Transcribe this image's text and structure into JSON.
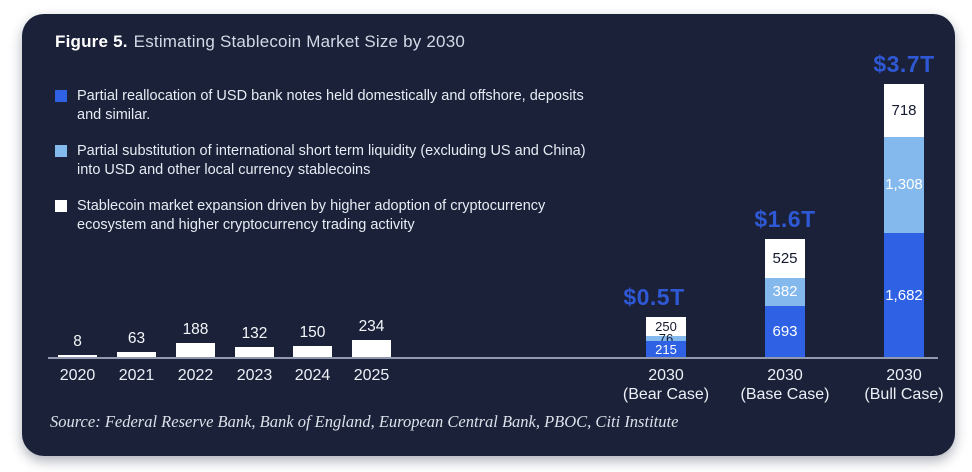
{
  "header": {
    "figure_label": "Figure 5.",
    "title": "Estimating Stablecoin Market Size by 2030"
  },
  "legend": {
    "items": [
      {
        "color": "#2e61e3",
        "name": "partial-reallocation-usd-bank-notes",
        "lines": [
          "Partial reallocation of USD bank notes held domestically and offshore, deposits",
          "and similar."
        ]
      },
      {
        "color": "#84b9ed",
        "name": "partial-substitution-international-liquidity",
        "lines": [
          "Partial substitution of international short term liquidity (excluding US and China)",
          "into USD and other local currency stablecoins"
        ]
      },
      {
        "color": "#ffffff",
        "name": "stablecoin-market-expansion",
        "lines": [
          "Stablecoin market expansion driven by higher adoption of cryptocurrency",
          "ecosystem and higher cryptocurrency trading activity"
        ]
      }
    ]
  },
  "chart_data": {
    "type": "bar",
    "stacked": true,
    "grid": false,
    "legend_position": "top-left",
    "title": "Figure 5. Estimating Stablecoin Market Size by 2030",
    "series_colors": {
      "royal": "#2e61e3",
      "sky": "#84b9ed",
      "white": "#ffffff"
    },
    "series_names": {
      "royal": "Partial reallocation of USD bank notes held domestically and offshore, deposits and similar.",
      "sky": "Partial substitution of international short term liquidity (excluding US and China) into USD and other local currency stablecoins",
      "white": "Stablecoin market expansion driven by higher adoption of cryptocurrency ecosystem and higher cryptocurrency trading activity"
    },
    "bars": [
      {
        "x_label_lines": [
          "2020"
        ],
        "value_label": "8",
        "segments": [
          {
            "value": 8,
            "color": "white"
          }
        ]
      },
      {
        "x_label_lines": [
          "2021"
        ],
        "value_label": "63",
        "segments": [
          {
            "value": 63,
            "color": "white"
          }
        ]
      },
      {
        "x_label_lines": [
          "2022"
        ],
        "value_label": "188",
        "segments": [
          {
            "value": 188,
            "color": "white"
          }
        ]
      },
      {
        "x_label_lines": [
          "2023"
        ],
        "value_label": "132",
        "segments": [
          {
            "value": 132,
            "color": "white"
          }
        ]
      },
      {
        "x_label_lines": [
          "2024"
        ],
        "value_label": "150",
        "segments": [
          {
            "value": 150,
            "color": "white"
          }
        ]
      },
      {
        "x_label_lines": [
          "2025"
        ],
        "value_label": "234",
        "segments": [
          {
            "value": 234,
            "color": "white"
          }
        ]
      },
      {
        "x_label_lines": [
          "2030",
          "(Bear Case)"
        ],
        "total_label": "$0.5T",
        "compact": true,
        "segments": [
          {
            "value": 215,
            "label": "215",
            "color": "royal",
            "label_color": "light"
          },
          {
            "value": 76,
            "label": "76",
            "color": "sky",
            "label_color": "dark"
          },
          {
            "value": 250,
            "label": "250",
            "color": "white",
            "label_color": "dark"
          }
        ]
      },
      {
        "x_label_lines": [
          "2030",
          "(Base Case)"
        ],
        "total_label": "$1.6T",
        "segments": [
          {
            "value": 693,
            "label": "693",
            "color": "royal",
            "label_color": "light"
          },
          {
            "value": 382,
            "label": "382",
            "color": "sky",
            "label_color": "light"
          },
          {
            "value": 525,
            "label": "525",
            "color": "white",
            "label_color": "dark"
          }
        ]
      },
      {
        "x_label_lines": [
          "2030",
          "(Bull Case)"
        ],
        "total_label": "$3.7T",
        "segments": [
          {
            "value": 1682,
            "label": "1,682",
            "color": "royal",
            "label_color": "light"
          },
          {
            "value": 1308,
            "label": "1,308",
            "color": "sky",
            "label_color": "light"
          },
          {
            "value": 718,
            "label": "718",
            "color": "white",
            "label_color": "dark"
          }
        ]
      }
    ]
  },
  "theme": {
    "card_background": "#1a2138",
    "accent_total_label": "#2f58d5",
    "axis_line": "#9099ad",
    "royal_blue": "#2e61e3",
    "sky_blue": "#84b9ed",
    "bar_white": "#ffffff"
  },
  "footer": {
    "source": "Source: Federal Reserve Bank, Bank of England, European Central Bank, PBOC, Citi Institute"
  }
}
